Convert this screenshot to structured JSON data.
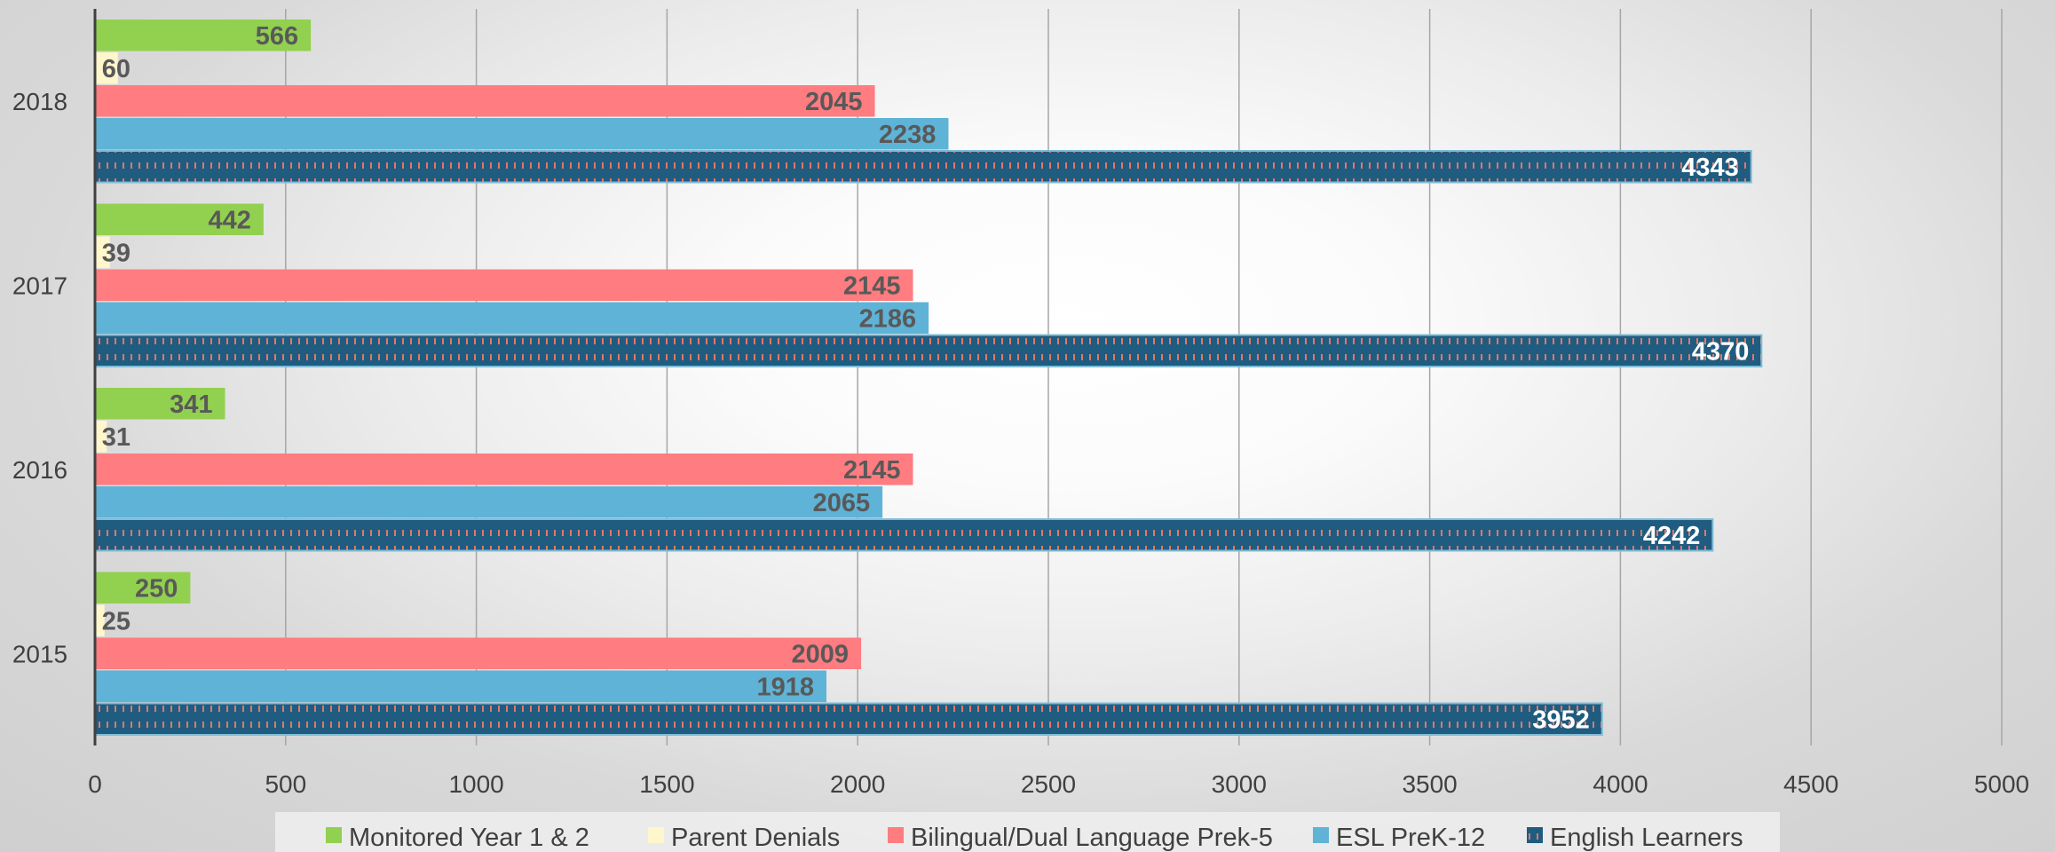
{
  "chart_data": {
    "type": "bar",
    "orientation": "horizontal",
    "title": "",
    "xlabel": "",
    "ylabel": "",
    "categories": [
      "2015",
      "2016",
      "2017",
      "2018"
    ],
    "xlim": [
      0,
      5000
    ],
    "x_ticks": [
      0,
      500,
      1000,
      1500,
      2000,
      2500,
      3000,
      3500,
      4000,
      4500,
      5000
    ],
    "grid": "vertical",
    "legend_position": "bottom",
    "series": [
      {
        "name": "Monitored Year 1 & 2",
        "values": [
          250,
          341,
          442,
          566
        ],
        "color": "#92d050",
        "label_color": "#595959"
      },
      {
        "name": "Parent Denials",
        "values": [
          25,
          31,
          39,
          60
        ],
        "color": "#fff6cc",
        "label_color": "#595959"
      },
      {
        "name": "Bilingual/Dual Language Prek-5",
        "values": [
          2009,
          2145,
          2145,
          2045
        ],
        "color": "#ff7c80",
        "label_color": "#595959"
      },
      {
        "name": "ESL PreK-12",
        "values": [
          1918,
          2065,
          2186,
          2238
        ],
        "color": "#5fb3d6",
        "label_color": "#595959"
      },
      {
        "name": "English Learners",
        "values": [
          3952,
          4242,
          4370,
          4343
        ],
        "color": "#1f5c80",
        "label_color": "#ffffff",
        "pattern": "dashed-hatch"
      }
    ]
  }
}
